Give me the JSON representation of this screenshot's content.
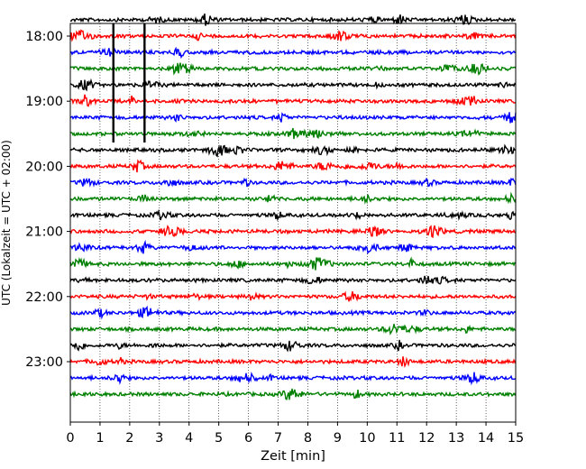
{
  "chart_data": {
    "type": "line",
    "title": "",
    "xlabel": "Zeit  [min]",
    "ylabel": "UTC (Lokalzeit = UTC + 02:00)",
    "xlim": [
      0,
      15
    ],
    "x_ticks": [
      0,
      1,
      2,
      3,
      4,
      5,
      6,
      7,
      8,
      9,
      10,
      11,
      12,
      13,
      14,
      15
    ],
    "y_ticks": [
      "18:00",
      "19:00",
      "20:00",
      "21:00",
      "22:00",
      "23:00"
    ],
    "grid": "vertical dotted",
    "trace_start": "17:45",
    "trace_interval_min": 15,
    "trace_count": 24,
    "trace_colors": [
      "#000000",
      "#ff0000",
      "#0000ff",
      "#008000"
    ],
    "events": [
      {
        "trace": "17:45",
        "x": 1.45,
        "amplitude": "large"
      },
      {
        "trace": "17:45",
        "x": 2.5,
        "amplitude": "large"
      }
    ]
  }
}
